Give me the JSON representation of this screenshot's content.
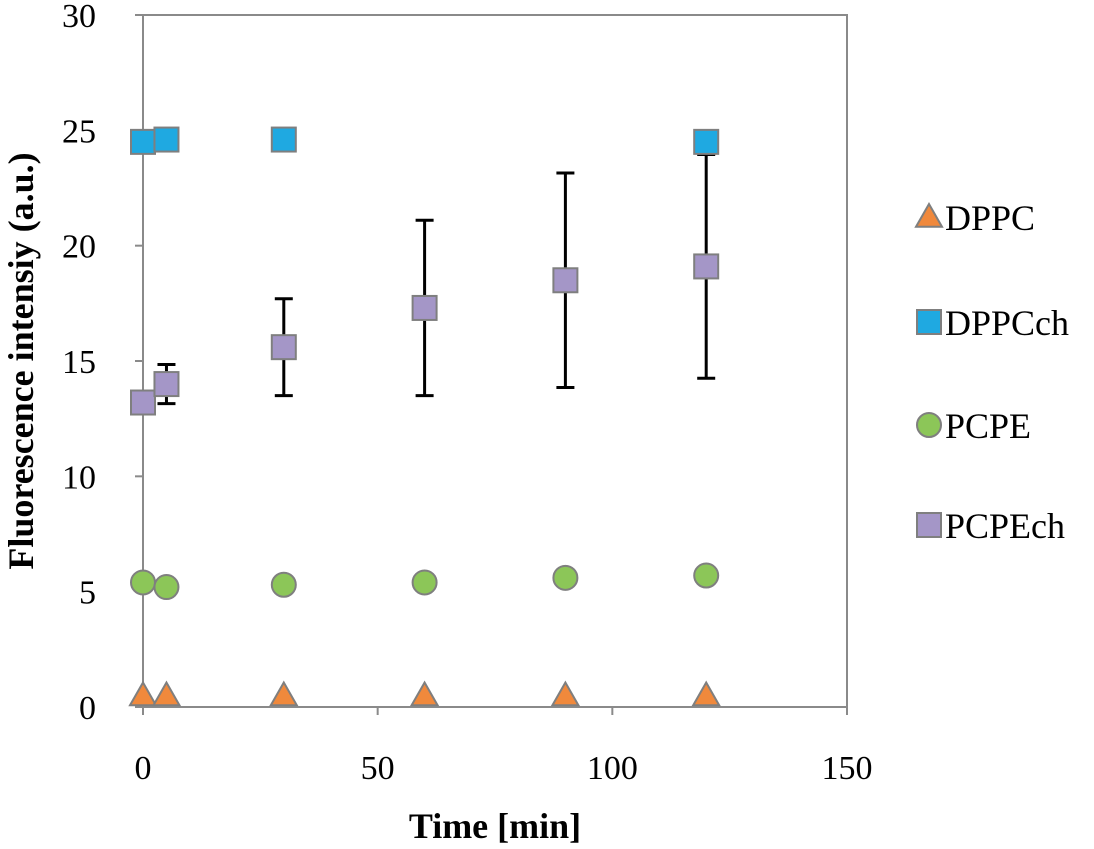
{
  "chart_data": {
    "type": "scatter",
    "title": "",
    "xlabel": "Time [min]",
    "ylabel": "Fluorescence intensiy (a.u.)",
    "xlim": [
      0,
      150
    ],
    "ylim": [
      0,
      30
    ],
    "xticks": [
      0,
      50,
      100,
      150
    ],
    "yticks": [
      0,
      5,
      10,
      15,
      20,
      25,
      30
    ],
    "grid": false,
    "legend_position": "right",
    "series": [
      {
        "name": "DPPC",
        "marker": "triangle",
        "color": "#f0893c",
        "x": [
          0,
          5,
          30,
          60,
          90,
          120
        ],
        "y": [
          0.5,
          0.5,
          0.5,
          0.5,
          0.5,
          0.5
        ],
        "error": [
          0,
          0,
          0,
          0,
          0,
          0
        ]
      },
      {
        "name": "DPPCch",
        "marker": "square",
        "color": "#1fa9e1",
        "x": [
          0,
          5,
          30,
          120
        ],
        "y": [
          24.5,
          24.6,
          24.6,
          24.5
        ],
        "error": [
          0,
          0,
          0,
          0.4
        ]
      },
      {
        "name": "PCPE",
        "marker": "circle",
        "color": "#8cc658",
        "x": [
          0,
          5,
          30,
          60,
          90,
          120
        ],
        "y": [
          5.4,
          5.2,
          5.3,
          5.4,
          5.6,
          5.7
        ],
        "error": [
          0,
          0,
          0,
          0,
          0,
          0
        ]
      },
      {
        "name": "PCPEch",
        "marker": "square",
        "color": "#a496c7",
        "x": [
          0,
          5,
          30,
          60,
          90,
          120
        ],
        "y": [
          13.2,
          14.0,
          15.6,
          17.3,
          18.5,
          19.1
        ],
        "error": [
          0,
          0.85,
          2.1,
          3.8,
          4.65,
          4.85
        ]
      }
    ]
  }
}
